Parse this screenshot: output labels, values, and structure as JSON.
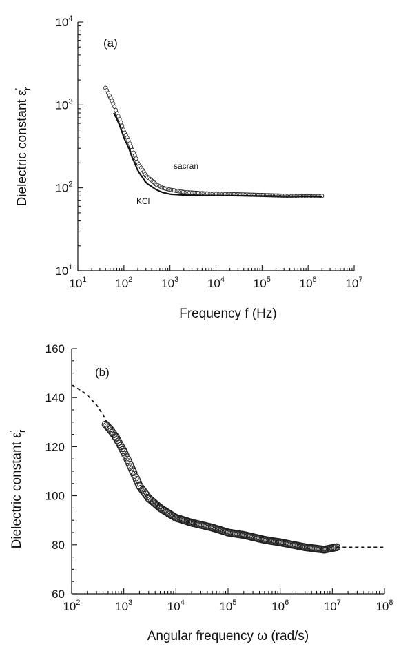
{
  "chart_data": [
    {
      "type": "scatter",
      "panel_label": "(a)",
      "ylabel": "Dielectric constant ε'r",
      "xlabel": "Frequency f (Hz)",
      "xscale": "log",
      "yscale": "log",
      "xlim": [
        10,
        10000000
      ],
      "ylim": [
        10,
        10000
      ],
      "x_ticks": [
        "10^1",
        "10^2",
        "10^3",
        "10^4",
        "10^5",
        "10^6",
        "10^7"
      ],
      "y_ticks": [
        "10^1",
        "10^2",
        "10^3",
        "10^4"
      ],
      "annotations": [
        "sacran",
        "KCl"
      ],
      "series": [
        {
          "name": "sacran",
          "style": "open-circles",
          "x": [
            40,
            50,
            70,
            100,
            150,
            200,
            300,
            500,
            700,
            1000,
            2000,
            5000,
            10000,
            100000,
            1000000,
            2000000
          ],
          "y": [
            1600,
            1250,
            800,
            480,
            290,
            200,
            140,
            110,
            100,
            95,
            89,
            86,
            85,
            82,
            79,
            80
          ]
        },
        {
          "name": "KCl",
          "style": "solid-line",
          "x": [
            60,
            100,
            150,
            200,
            300,
            500,
            700,
            1000,
            2000,
            5000,
            10000,
            100000,
            1000000,
            2000000
          ],
          "y": [
            800,
            400,
            235,
            160,
            115,
            95,
            88,
            84,
            82,
            81,
            81,
            80,
            79,
            79
          ]
        }
      ]
    },
    {
      "type": "scatter",
      "panel_label": "(b)",
      "ylabel": "Dielectric constant ε'r",
      "xlabel": "Angular frequency ω (rad/s)",
      "xscale": "log",
      "yscale": "linear",
      "xlim": [
        100,
        100000000
      ],
      "ylim": [
        60,
        160
      ],
      "x_ticks": [
        "10^2",
        "10^3",
        "10^4",
        "10^5",
        "10^6",
        "10^7",
        "10^8"
      ],
      "y_ticks": [
        "60",
        "80",
        "100",
        "120",
        "140",
        "160"
      ],
      "series": [
        {
          "name": "",
          "style": "open-circles",
          "x": [
            450,
            550,
            700,
            1000,
            1500,
            2000,
            3000,
            5000,
            7000,
            10000,
            20000,
            50000,
            100000,
            200000,
            500000,
            1000000,
            3000000,
            7000000,
            12000000
          ],
          "y": [
            129,
            127,
            124,
            118,
            110,
            104,
            99,
            95,
            93,
            91,
            89,
            87,
            85,
            84,
            82,
            81,
            79,
            78,
            79
          ]
        },
        {
          "name": "",
          "style": "dashed-line",
          "x": [
            100,
            150,
            200,
            300,
            400,
            500
          ],
          "y": [
            145,
            143,
            141,
            137,
            133,
            129
          ]
        },
        {
          "name": "",
          "style": "dashed-line",
          "x": [
            12000000,
            20000000,
            50000000,
            100000000
          ],
          "y": [
            79,
            79,
            79,
            79
          ]
        }
      ]
    }
  ]
}
